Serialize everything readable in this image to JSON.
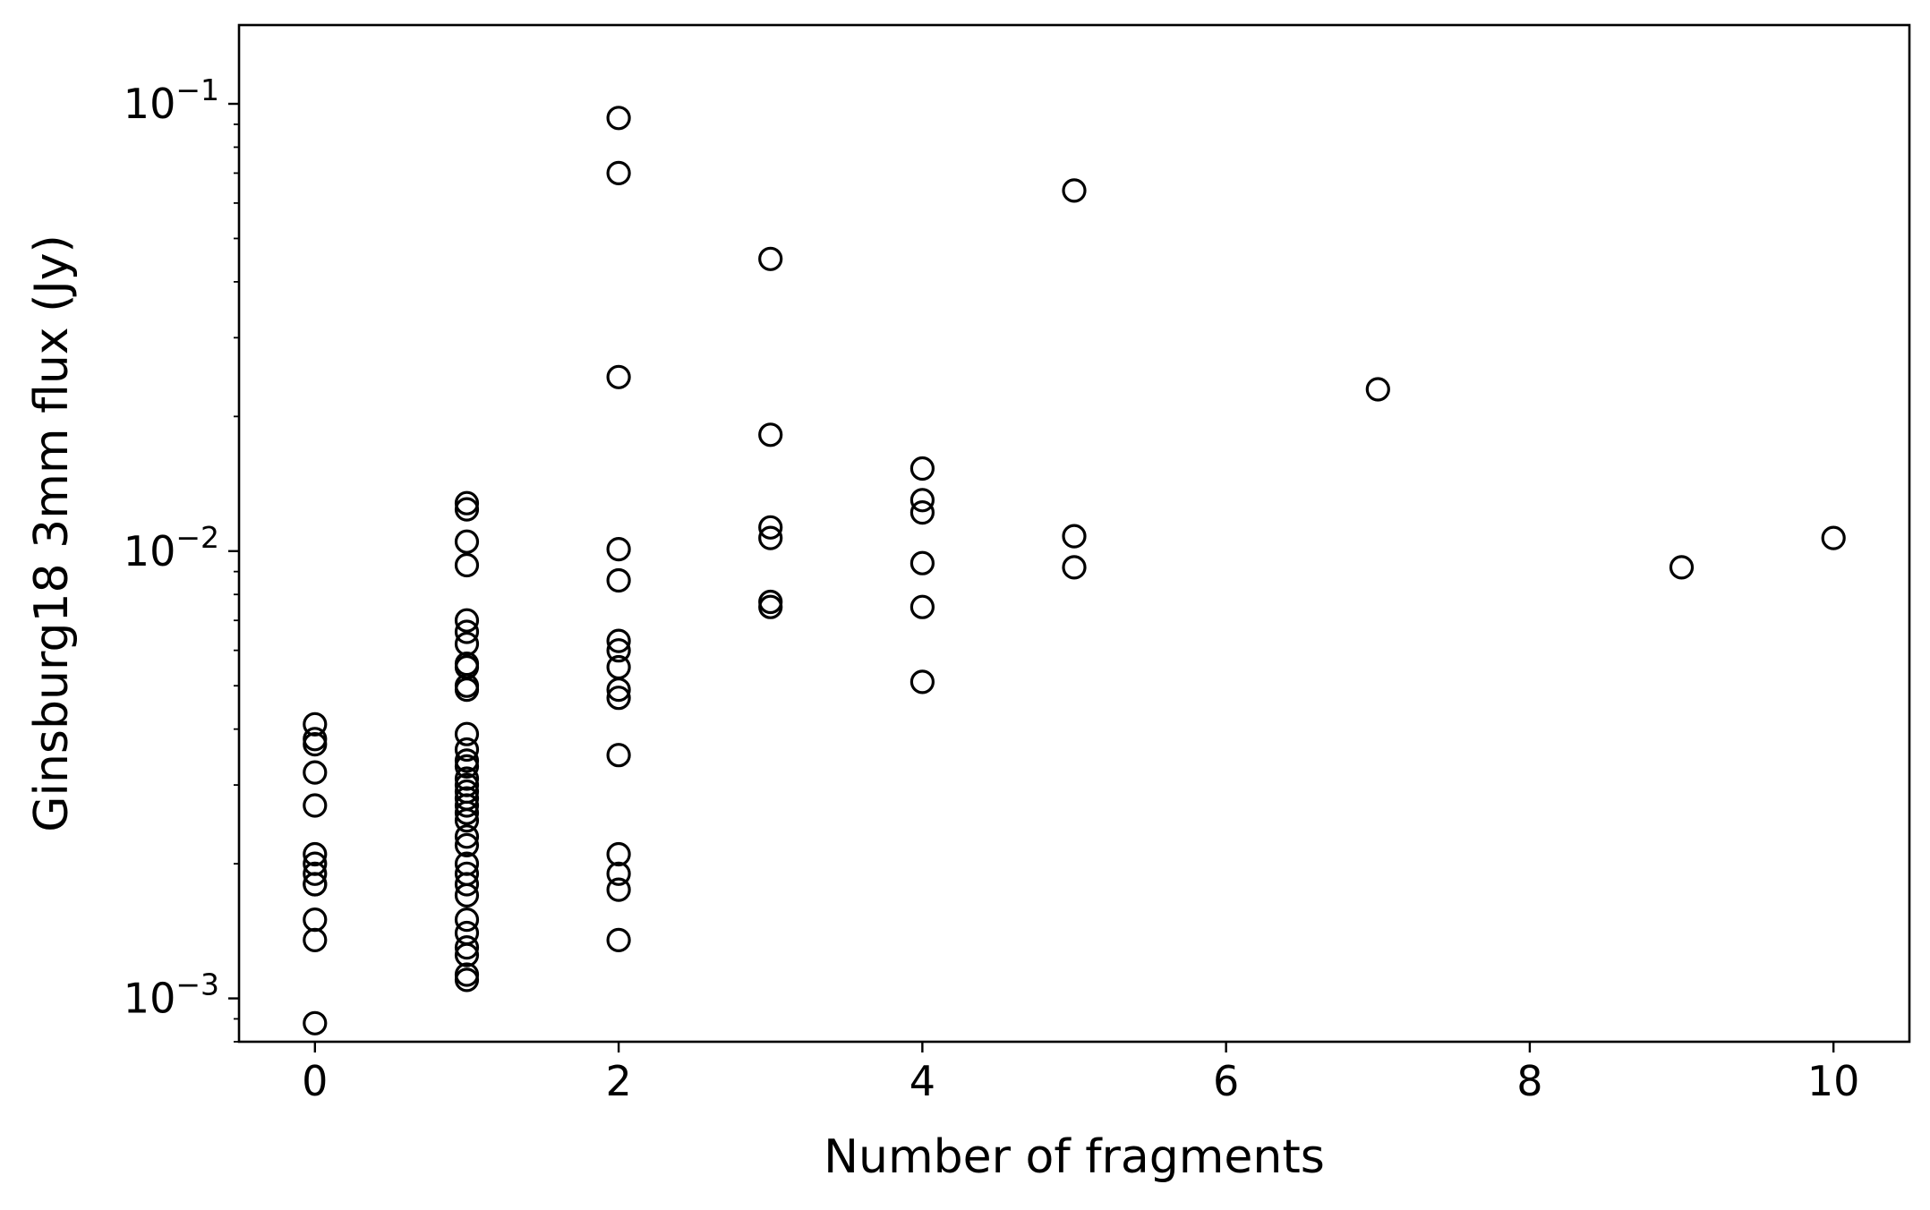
{
  "chart_data": {
    "type": "scatter",
    "title": "",
    "xlabel": "Number of fragments",
    "ylabel": "Ginsburg18 3mm flux (Jy)",
    "xlim": [
      -0.5,
      10.5
    ],
    "ylim": [
      0.0008,
      0.15
    ],
    "yscale": "log",
    "grid": false,
    "legend": "none",
    "marker": "open-circle",
    "marker_color": "#000000",
    "x_ticks": [
      {
        "value": 0,
        "label": "0"
      },
      {
        "value": 2,
        "label": "2"
      },
      {
        "value": 4,
        "label": "4"
      },
      {
        "value": 6,
        "label": "6"
      },
      {
        "value": 8,
        "label": "8"
      },
      {
        "value": 10,
        "label": "10"
      }
    ],
    "y_ticks": [
      {
        "value": 0.001,
        "base": "10",
        "exp": "−3"
      },
      {
        "value": 0.01,
        "base": "10",
        "exp": "−2"
      },
      {
        "value": 0.1,
        "base": "10",
        "exp": "−1"
      }
    ],
    "points": [
      [
        0,
        0.0041
      ],
      [
        0,
        0.0038
      ],
      [
        0,
        0.0037
      ],
      [
        0,
        0.0032
      ],
      [
        0,
        0.0027
      ],
      [
        0,
        0.0021
      ],
      [
        0,
        0.002
      ],
      [
        0,
        0.0019
      ],
      [
        0,
        0.0018
      ],
      [
        0,
        0.0018
      ],
      [
        0,
        0.0015
      ],
      [
        0,
        0.00135
      ],
      [
        0,
        0.00088
      ],
      [
        1,
        0.0128
      ],
      [
        1,
        0.0124
      ],
      [
        1,
        0.0105
      ],
      [
        1,
        0.0093
      ],
      [
        1,
        0.007
      ],
      [
        1,
        0.0066
      ],
      [
        1,
        0.0062
      ],
      [
        1,
        0.0056
      ],
      [
        1,
        0.0055
      ],
      [
        1,
        0.005
      ],
      [
        1,
        0.0049
      ],
      [
        1,
        0.0039
      ],
      [
        1,
        0.0036
      ],
      [
        1,
        0.0034
      ],
      [
        1,
        0.0033
      ],
      [
        1,
        0.0031
      ],
      [
        1,
        0.003
      ],
      [
        1,
        0.0029
      ],
      [
        1,
        0.0028
      ],
      [
        1,
        0.0027
      ],
      [
        1,
        0.0026
      ],
      [
        1,
        0.0025
      ],
      [
        1,
        0.0023
      ],
      [
        1,
        0.0022
      ],
      [
        1,
        0.002
      ],
      [
        1,
        0.0019
      ],
      [
        1,
        0.0018
      ],
      [
        1,
        0.0017
      ],
      [
        1,
        0.0015
      ],
      [
        1,
        0.0014
      ],
      [
        1,
        0.0013
      ],
      [
        1,
        0.00125
      ],
      [
        1,
        0.00113
      ],
      [
        1,
        0.0011
      ],
      [
        2,
        0.093
      ],
      [
        2,
        0.07
      ],
      [
        2,
        0.0245
      ],
      [
        2,
        0.0101
      ],
      [
        2,
        0.0086
      ],
      [
        2,
        0.0063
      ],
      [
        2,
        0.006
      ],
      [
        2,
        0.0055
      ],
      [
        2,
        0.0049
      ],
      [
        2,
        0.0047
      ],
      [
        2,
        0.0035
      ],
      [
        2,
        0.0021
      ],
      [
        2,
        0.0019
      ],
      [
        2,
        0.00175
      ],
      [
        2,
        0.00135
      ],
      [
        3,
        0.045
      ],
      [
        3,
        0.0182
      ],
      [
        3,
        0.0113
      ],
      [
        3,
        0.0107
      ],
      [
        3,
        0.0077
      ],
      [
        3,
        0.0075
      ],
      [
        4,
        0.0153
      ],
      [
        4,
        0.013
      ],
      [
        4,
        0.0122
      ],
      [
        4,
        0.0094
      ],
      [
        4,
        0.0075
      ],
      [
        4,
        0.0051
      ],
      [
        5,
        0.064
      ],
      [
        5,
        0.0108
      ],
      [
        5,
        0.0092
      ],
      [
        7,
        0.023
      ],
      [
        9,
        0.0092
      ],
      [
        10,
        0.0107
      ]
    ]
  }
}
